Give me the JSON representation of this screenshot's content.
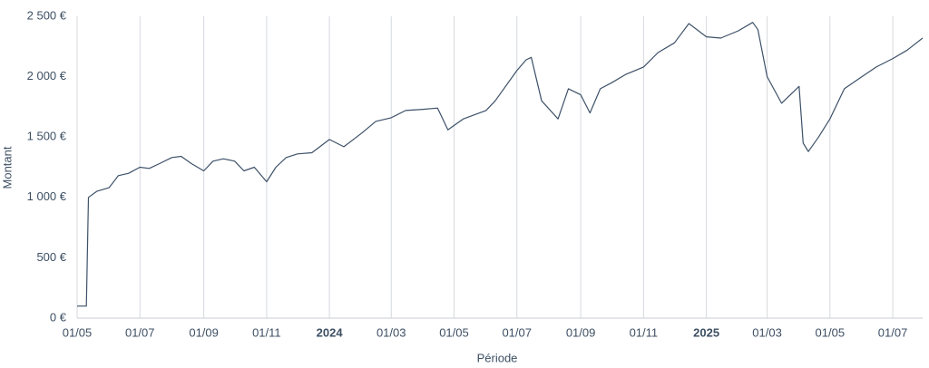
{
  "chart_data": {
    "type": "line",
    "xlabel": "Période",
    "ylabel": "Montant",
    "x": [
      "2023-05-01",
      "2023-05-10",
      "2023-05-12",
      "2023-05-20",
      "2023-06-01",
      "2023-06-10",
      "2023-06-20",
      "2023-07-01",
      "2023-07-10",
      "2023-07-20",
      "2023-08-01",
      "2023-08-10",
      "2023-08-20",
      "2023-09-01",
      "2023-09-10",
      "2023-09-20",
      "2023-10-01",
      "2023-10-10",
      "2023-10-20",
      "2023-11-01",
      "2023-11-10",
      "2023-11-20",
      "2023-12-01",
      "2023-12-15",
      "2024-01-01",
      "2024-01-15",
      "2024-02-01",
      "2024-02-15",
      "2024-03-01",
      "2024-03-15",
      "2024-04-01",
      "2024-04-15",
      "2024-04-25",
      "2024-05-10",
      "2024-06-01",
      "2024-06-10",
      "2024-07-01",
      "2024-07-10",
      "2024-07-15",
      "2024-07-25",
      "2024-08-10",
      "2024-08-20",
      "2024-09-01",
      "2024-09-10",
      "2024-09-20",
      "2024-10-01",
      "2024-10-15",
      "2024-11-01",
      "2024-11-15",
      "2024-12-01",
      "2024-12-15",
      "2025-01-01",
      "2025-01-15",
      "2025-02-01",
      "2025-02-15",
      "2025-02-20",
      "2025-03-01",
      "2025-03-15",
      "2025-04-01",
      "2025-04-05",
      "2025-04-10",
      "2025-04-20",
      "2025-05-01",
      "2025-05-15",
      "2025-06-01",
      "2025-06-15",
      "2025-07-01",
      "2025-07-15",
      "2025-07-30"
    ],
    "series": [
      {
        "name": "Montant",
        "color": "#3d5168",
        "values": [
          100,
          100,
          1000,
          1050,
          1080,
          1180,
          1200,
          1250,
          1240,
          1280,
          1330,
          1340,
          1280,
          1220,
          1300,
          1320,
          1300,
          1220,
          1250,
          1130,
          1250,
          1330,
          1360,
          1370,
          1480,
          1420,
          1530,
          1630,
          1660,
          1720,
          1730,
          1740,
          1560,
          1650,
          1720,
          1800,
          2050,
          2140,
          2160,
          1800,
          1650,
          1900,
          1850,
          1700,
          1900,
          1950,
          2020,
          2080,
          2200,
          2280,
          2440,
          2330,
          2320,
          2380,
          2450,
          2390,
          2000,
          1780,
          1920,
          1450,
          1380,
          1500,
          1650,
          1900,
          2000,
          2080,
          2150,
          2220,
          2320
        ]
      }
    ],
    "xlim": [
      "2023-05-01",
      "2025-07-30"
    ],
    "xticks": [
      {
        "value": "2023-05-01",
        "label": "01/05"
      },
      {
        "value": "2023-07-01",
        "label": "01/07"
      },
      {
        "value": "2023-09-01",
        "label": "01/09"
      },
      {
        "value": "2023-11-01",
        "label": "01/11"
      },
      {
        "value": "2024-01-01",
        "label": "2024"
      },
      {
        "value": "2024-03-01",
        "label": "01/03"
      },
      {
        "value": "2024-05-01",
        "label": "01/05"
      },
      {
        "value": "2024-07-01",
        "label": "01/07"
      },
      {
        "value": "2024-09-01",
        "label": "01/09"
      },
      {
        "value": "2024-11-01",
        "label": "01/11"
      },
      {
        "value": "2025-01-01",
        "label": "2025"
      },
      {
        "value": "2025-03-01",
        "label": "01/03"
      },
      {
        "value": "2025-05-01",
        "label": "01/05"
      },
      {
        "value": "2025-07-01",
        "label": "01/07"
      }
    ],
    "ylim": [
      0,
      2500
    ],
    "yticks": [
      {
        "value": 0,
        "label": "0 €"
      },
      {
        "value": 500,
        "label": "500 €"
      },
      {
        "value": 1000,
        "label": "1 000 €"
      },
      {
        "value": 1500,
        "label": "1 500 €"
      },
      {
        "value": 2000,
        "label": "2 000 €"
      },
      {
        "value": 2500,
        "label": "2 500 €"
      }
    ],
    "grid": "x"
  }
}
